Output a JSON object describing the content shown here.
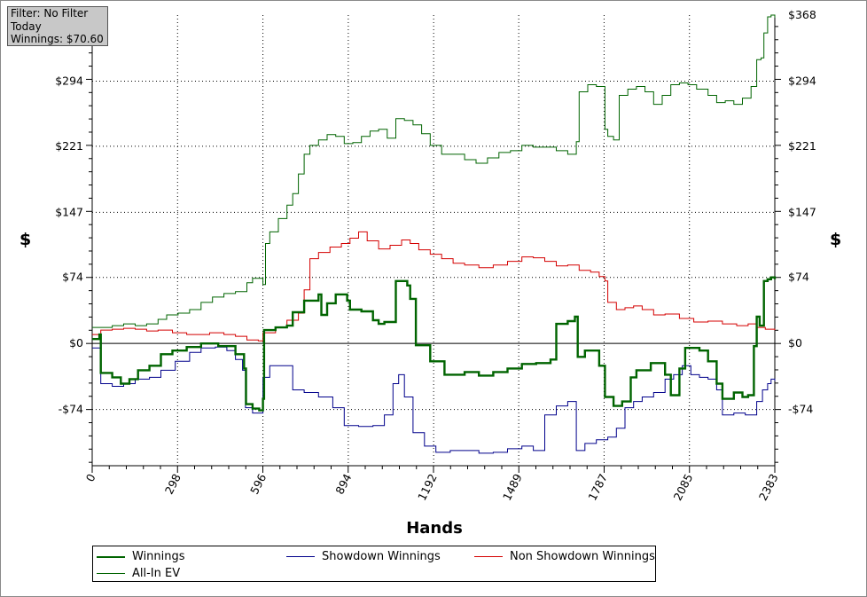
{
  "filter_box": {
    "line1": "Filter: No Filter",
    "line2": "Today",
    "line3": "Winnings: $70.60"
  },
  "chart_data": {
    "type": "line",
    "xlabel": "Hands",
    "ylabel_left": "$",
    "ylabel_right": "$",
    "x_ticks": [
      0,
      298,
      596,
      894,
      1192,
      1489,
      1787,
      2085,
      2383
    ],
    "y_ticks": [
      -74,
      0,
      74,
      147,
      221,
      294,
      368
    ],
    "y_tick_labels": [
      "-$74",
      "$0",
      "$74",
      "$147",
      "$221",
      "$294",
      "$368"
    ],
    "xlim": [
      0,
      2383
    ],
    "ylim": [
      -137,
      368
    ],
    "grid": true,
    "legend_position": "bottom",
    "series": [
      {
        "name": "Winnings",
        "color": "#006400",
        "points": [
          [
            0,
            5
          ],
          [
            25,
            10
          ],
          [
            30,
            -33
          ],
          [
            70,
            -38
          ],
          [
            100,
            -45
          ],
          [
            130,
            -40
          ],
          [
            160,
            -30
          ],
          [
            200,
            -25
          ],
          [
            240,
            -12
          ],
          [
            280,
            -8
          ],
          [
            330,
            -4
          ],
          [
            380,
            0
          ],
          [
            440,
            -3
          ],
          [
            500,
            -12
          ],
          [
            530,
            -28
          ],
          [
            537,
            -68
          ],
          [
            560,
            -73
          ],
          [
            583,
            -75
          ],
          [
            596,
            -62
          ],
          [
            600,
            15
          ],
          [
            640,
            18
          ],
          [
            680,
            20
          ],
          [
            700,
            35
          ],
          [
            740,
            48
          ],
          [
            790,
            55
          ],
          [
            800,
            32
          ],
          [
            820,
            45
          ],
          [
            850,
            55
          ],
          [
            890,
            48
          ],
          [
            900,
            38
          ],
          [
            940,
            36
          ],
          [
            980,
            26
          ],
          [
            1000,
            22
          ],
          [
            1020,
            24
          ],
          [
            1060,
            70
          ],
          [
            1100,
            65
          ],
          [
            1110,
            50
          ],
          [
            1130,
            -2
          ],
          [
            1180,
            -20
          ],
          [
            1230,
            -35
          ],
          [
            1300,
            -32
          ],
          [
            1350,
            -36
          ],
          [
            1400,
            -32
          ],
          [
            1450,
            -28
          ],
          [
            1500,
            -23
          ],
          [
            1550,
            -22
          ],
          [
            1600,
            -18
          ],
          [
            1620,
            22
          ],
          [
            1660,
            25
          ],
          [
            1685,
            30
          ],
          [
            1695,
            -15
          ],
          [
            1720,
            -8
          ],
          [
            1770,
            -25
          ],
          [
            1790,
            -60
          ],
          [
            1820,
            -70
          ],
          [
            1850,
            -65
          ],
          [
            1880,
            -38
          ],
          [
            1900,
            -30
          ],
          [
            1950,
            -22
          ],
          [
            2000,
            -35
          ],
          [
            2020,
            -58
          ],
          [
            2050,
            -28
          ],
          [
            2070,
            -5
          ],
          [
            2120,
            -8
          ],
          [
            2150,
            -20
          ],
          [
            2180,
            -45
          ],
          [
            2200,
            -62
          ],
          [
            2240,
            -55
          ],
          [
            2270,
            -60
          ],
          [
            2290,
            -58
          ],
          [
            2310,
            -3
          ],
          [
            2320,
            30
          ],
          [
            2330,
            20
          ],
          [
            2345,
            70
          ],
          [
            2358,
            72
          ],
          [
            2370,
            74
          ],
          [
            2383,
            72
          ]
        ]
      },
      {
        "name": "Showdown Winnings",
        "color": "#00008b",
        "points": [
          [
            0,
            -5
          ],
          [
            30,
            -45
          ],
          [
            70,
            -48
          ],
          [
            110,
            -45
          ],
          [
            150,
            -40
          ],
          [
            200,
            -38
          ],
          [
            240,
            -30
          ],
          [
            290,
            -20
          ],
          [
            340,
            -10
          ],
          [
            380,
            -5
          ],
          [
            430,
            -4
          ],
          [
            470,
            -8
          ],
          [
            500,
            -18
          ],
          [
            525,
            -30
          ],
          [
            535,
            -72
          ],
          [
            560,
            -78
          ],
          [
            583,
            -78
          ],
          [
            596,
            -38
          ],
          [
            620,
            -25
          ],
          [
            660,
            -25
          ],
          [
            700,
            -52
          ],
          [
            740,
            -55
          ],
          [
            790,
            -60
          ],
          [
            840,
            -72
          ],
          [
            880,
            -92
          ],
          [
            930,
            -93
          ],
          [
            980,
            -92
          ],
          [
            1020,
            -80
          ],
          [
            1050,
            -45
          ],
          [
            1070,
            -35
          ],
          [
            1090,
            -60
          ],
          [
            1120,
            -100
          ],
          [
            1160,
            -115
          ],
          [
            1200,
            -122
          ],
          [
            1250,
            -120
          ],
          [
            1300,
            -120
          ],
          [
            1350,
            -123
          ],
          [
            1400,
            -122
          ],
          [
            1450,
            -118
          ],
          [
            1500,
            -115
          ],
          [
            1540,
            -120
          ],
          [
            1580,
            -80
          ],
          [
            1620,
            -70
          ],
          [
            1660,
            -65
          ],
          [
            1690,
            -120
          ],
          [
            1720,
            -112
          ],
          [
            1760,
            -108
          ],
          [
            1800,
            -105
          ],
          [
            1830,
            -95
          ],
          [
            1860,
            -72
          ],
          [
            1890,
            -65
          ],
          [
            1920,
            -60
          ],
          [
            1960,
            -55
          ],
          [
            2000,
            -40
          ],
          [
            2030,
            -35
          ],
          [
            2060,
            -25
          ],
          [
            2090,
            -35
          ],
          [
            2120,
            -38
          ],
          [
            2150,
            -40
          ],
          [
            2180,
            -52
          ],
          [
            2200,
            -80
          ],
          [
            2240,
            -78
          ],
          [
            2280,
            -80
          ],
          [
            2320,
            -65
          ],
          [
            2340,
            -52
          ],
          [
            2358,
            -45
          ],
          [
            2370,
            -40
          ],
          [
            2383,
            -42
          ]
        ]
      },
      {
        "name": "Non Showdown Winnings",
        "color": "#d40000",
        "points": [
          [
            0,
            10
          ],
          [
            30,
            15
          ],
          [
            70,
            16
          ],
          [
            110,
            17
          ],
          [
            150,
            16
          ],
          [
            190,
            14
          ],
          [
            230,
            15
          ],
          [
            280,
            12
          ],
          [
            330,
            10
          ],
          [
            370,
            10
          ],
          [
            410,
            12
          ],
          [
            460,
            10
          ],
          [
            500,
            8
          ],
          [
            540,
            4
          ],
          [
            580,
            3
          ],
          [
            596,
            12
          ],
          [
            640,
            18
          ],
          [
            680,
            26
          ],
          [
            720,
            34
          ],
          [
            740,
            60
          ],
          [
            760,
            95
          ],
          [
            790,
            102
          ],
          [
            830,
            108
          ],
          [
            870,
            112
          ],
          [
            900,
            118
          ],
          [
            930,
            125
          ],
          [
            960,
            115
          ],
          [
            1000,
            106
          ],
          [
            1040,
            110
          ],
          [
            1080,
            116
          ],
          [
            1110,
            112
          ],
          [
            1140,
            105
          ],
          [
            1180,
            100
          ],
          [
            1220,
            95
          ],
          [
            1260,
            90
          ],
          [
            1300,
            88
          ],
          [
            1350,
            85
          ],
          [
            1400,
            88
          ],
          [
            1450,
            92
          ],
          [
            1500,
            97
          ],
          [
            1540,
            96
          ],
          [
            1580,
            92
          ],
          [
            1620,
            87
          ],
          [
            1660,
            88
          ],
          [
            1700,
            82
          ],
          [
            1740,
            80
          ],
          [
            1770,
            75
          ],
          [
            1790,
            70
          ],
          [
            1800,
            46
          ],
          [
            1830,
            38
          ],
          [
            1860,
            40
          ],
          [
            1890,
            42
          ],
          [
            1920,
            38
          ],
          [
            1960,
            32
          ],
          [
            2000,
            33
          ],
          [
            2050,
            28
          ],
          [
            2100,
            24
          ],
          [
            2150,
            25
          ],
          [
            2200,
            22
          ],
          [
            2250,
            20
          ],
          [
            2290,
            22
          ],
          [
            2320,
            18
          ],
          [
            2350,
            16
          ],
          [
            2383,
            15
          ]
        ]
      },
      {
        "name": "All-In EV",
        "color": "#006400",
        "points": [
          [
            0,
            18
          ],
          [
            30,
            18
          ],
          [
            70,
            20
          ],
          [
            110,
            22
          ],
          [
            150,
            20
          ],
          [
            190,
            22
          ],
          [
            230,
            27
          ],
          [
            260,
            32
          ],
          [
            300,
            34
          ],
          [
            340,
            38
          ],
          [
            380,
            46
          ],
          [
            420,
            52
          ],
          [
            460,
            56
          ],
          [
            500,
            58
          ],
          [
            540,
            68
          ],
          [
            560,
            73
          ],
          [
            596,
            66
          ],
          [
            605,
            112
          ],
          [
            620,
            125
          ],
          [
            650,
            140
          ],
          [
            680,
            155
          ],
          [
            700,
            168
          ],
          [
            720,
            190
          ],
          [
            740,
            212
          ],
          [
            760,
            222
          ],
          [
            790,
            228
          ],
          [
            820,
            234
          ],
          [
            850,
            232
          ],
          [
            880,
            224
          ],
          [
            910,
            225
          ],
          [
            940,
            232
          ],
          [
            970,
            238
          ],
          [
            1000,
            240
          ],
          [
            1030,
            230
          ],
          [
            1060,
            252
          ],
          [
            1090,
            250
          ],
          [
            1120,
            245
          ],
          [
            1150,
            235
          ],
          [
            1180,
            222
          ],
          [
            1220,
            212
          ],
          [
            1260,
            212
          ],
          [
            1300,
            206
          ],
          [
            1340,
            202
          ],
          [
            1380,
            208
          ],
          [
            1420,
            214
          ],
          [
            1460,
            216
          ],
          [
            1500,
            222
          ],
          [
            1540,
            220
          ],
          [
            1580,
            220
          ],
          [
            1620,
            216
          ],
          [
            1660,
            212
          ],
          [
            1690,
            226
          ],
          [
            1700,
            282
          ],
          [
            1730,
            290
          ],
          [
            1760,
            288
          ],
          [
            1790,
            240
          ],
          [
            1800,
            232
          ],
          [
            1820,
            228
          ],
          [
            1840,
            278
          ],
          [
            1870,
            285
          ],
          [
            1900,
            288
          ],
          [
            1930,
            282
          ],
          [
            1960,
            268
          ],
          [
            1990,
            278
          ],
          [
            2020,
            290
          ],
          [
            2050,
            292
          ],
          [
            2080,
            290
          ],
          [
            2110,
            285
          ],
          [
            2150,
            278
          ],
          [
            2180,
            270
          ],
          [
            2210,
            272
          ],
          [
            2240,
            268
          ],
          [
            2270,
            275
          ],
          [
            2300,
            288
          ],
          [
            2320,
            318
          ],
          [
            2335,
            320
          ],
          [
            2345,
            348
          ],
          [
            2358,
            366
          ],
          [
            2370,
            368
          ],
          [
            2383,
            365
          ]
        ]
      }
    ]
  }
}
